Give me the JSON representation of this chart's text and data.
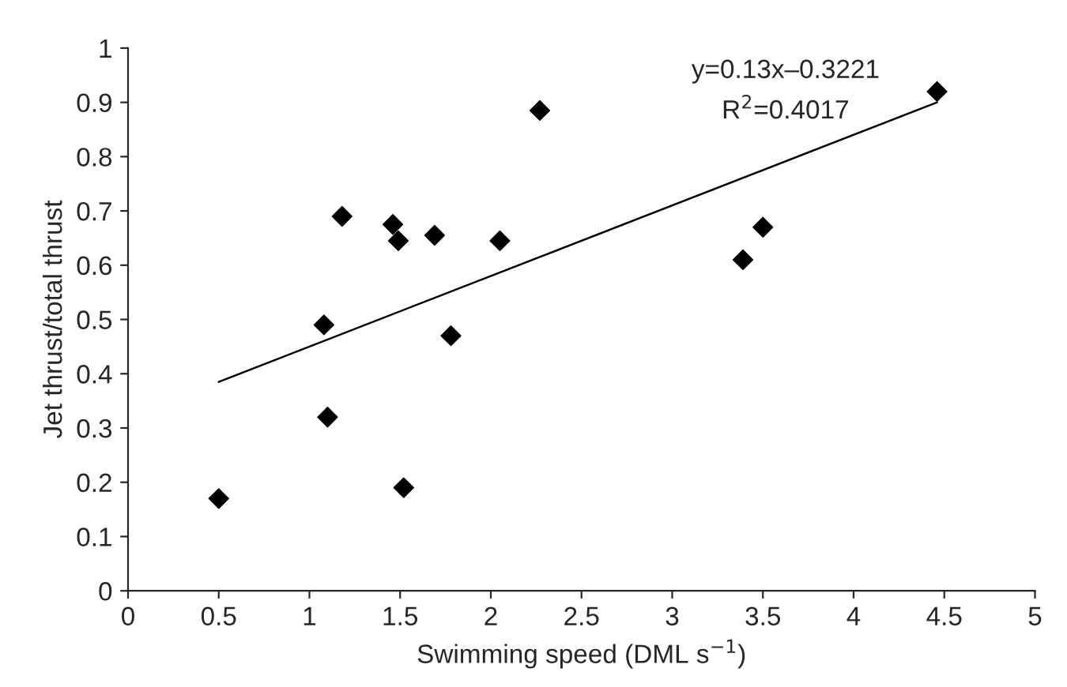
{
  "chart_data": {
    "type": "scatter",
    "xlabel": "Swimming speed (DML s$^{−1}$)",
    "ylabel": "Jet thrust/total thrust",
    "annotations": [
      "y=0.13x–0.3221",
      "R$^{2}$=0.4017"
    ],
    "series": [
      {
        "color": "#000000",
        "marker": "diamond",
        "x": [
          0.5,
          1.08,
          1.1,
          1.18,
          1.46,
          1.49,
          1.52,
          1.69,
          1.78,
          2.05,
          2.27,
          3.39,
          3.5,
          4.46
        ],
        "values": [
          0.17,
          0.49,
          0.32,
          0.69,
          0.675,
          0.645,
          0.19,
          0.655,
          0.47,
          0.645,
          0.885,
          0.61,
          0.67,
          0.92
        ]
      },
      {
        "type": "line",
        "color": "#000000",
        "x": [
          0.5,
          4.46
        ],
        "values": [
          0.385,
          0.9
        ]
      }
    ],
    "xlim": [
      0,
      5
    ],
    "xticks": [
      0,
      0.5,
      1,
      1.5,
      2,
      2.5,
      3,
      3.5,
      4,
      4.5,
      5
    ],
    "ylim": [
      0,
      1
    ],
    "yticks": [
      0,
      0.1,
      0.2,
      0.3,
      0.4,
      0.5,
      0.6,
      0.7,
      0.8,
      0.9,
      1
    ],
    "grid": false,
    "legend": false
  }
}
